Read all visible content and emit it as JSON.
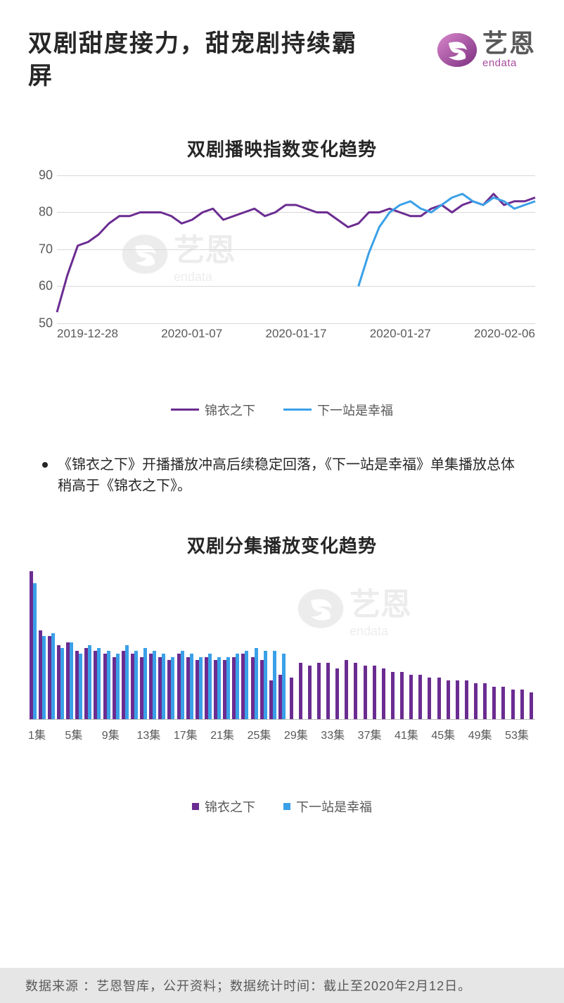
{
  "title": "双剧甜度接力，甜宠剧持续霸屏",
  "logo": {
    "cn": "艺恩",
    "en": "endata"
  },
  "colors": {
    "series1": "#6b2c91",
    "series2": "#3aa0e8",
    "text": "#262626",
    "subtext": "#595959",
    "grid": "#d9d9d9",
    "footer_bg": "#e6e6e6"
  },
  "line_chart": {
    "title": "双剧播映指数变化趋势",
    "ylim": [
      50,
      90
    ],
    "yticks": [
      50,
      60,
      70,
      80,
      90
    ],
    "xticks": [
      "2019-12-28",
      "2020-01-07",
      "2020-01-17",
      "2020-01-27",
      "2020-02-06"
    ],
    "series": [
      {
        "name": "锦衣之下",
        "color": "#6b2c91",
        "line_width": 3,
        "data": [
          53,
          63,
          71,
          72,
          74,
          77,
          79,
          79,
          80,
          80,
          80,
          79,
          77,
          78,
          80,
          81,
          78,
          79,
          80,
          81,
          79,
          80,
          82,
          82,
          81,
          80,
          80,
          78,
          76,
          77,
          80,
          80,
          81,
          80,
          79,
          79,
          81,
          82,
          80,
          82,
          83,
          82,
          85,
          82,
          83,
          83,
          84
        ]
      },
      {
        "name": "下一站是幸福",
        "color": "#3aa0e8",
        "line_width": 3,
        "start_index": 29,
        "data": [
          60,
          69,
          76,
          80,
          82,
          83,
          81,
          80,
          82,
          84,
          85,
          83,
          82,
          84,
          83,
          81,
          82,
          83
        ]
      }
    ],
    "legend": [
      "锦衣之下",
      "下一站是幸福"
    ]
  },
  "bullet_note": "《锦衣之下》开播播放冲高后续稳定回落，《下一站是幸福》单集播放总体稍高于《锦衣之下》。",
  "bar_chart": {
    "title": "双剧分集播放变化趋势",
    "max_value": 100,
    "xticks": [
      "1集",
      "5集",
      "9集",
      "13集",
      "17集",
      "21集",
      "25集",
      "29集",
      "33集",
      "37集",
      "41集",
      "45集",
      "49集",
      "53集"
    ],
    "xtick_positions": [
      1,
      5,
      9,
      13,
      17,
      21,
      25,
      29,
      33,
      37,
      41,
      45,
      49,
      53
    ],
    "num_episodes": 55,
    "series1": {
      "name": "锦衣之下",
      "color": "#6b2c91",
      "data": [
        100,
        60,
        56,
        50,
        52,
        46,
        48,
        46,
        44,
        42,
        46,
        44,
        42,
        44,
        42,
        40,
        44,
        42,
        40,
        42,
        40,
        40,
        42,
        44,
        42,
        40,
        26,
        30,
        28,
        38,
        36,
        38,
        38,
        34,
        40,
        38,
        36,
        36,
        34,
        32,
        32,
        30,
        30,
        28,
        28,
        26,
        26,
        26,
        24,
        24,
        22,
        22,
        20,
        20,
        18
      ]
    },
    "series2": {
      "name": "下一站是幸福",
      "color": "#3aa0e8",
      "data": [
        92,
        56,
        58,
        48,
        52,
        44,
        50,
        48,
        46,
        44,
        50,
        46,
        48,
        46,
        44,
        42,
        46,
        44,
        42,
        44,
        42,
        42,
        44,
        46,
        48,
        46,
        46,
        44
      ]
    },
    "legend": [
      "锦衣之下",
      "下一站是幸福"
    ]
  },
  "footer": "数据来源 ：艺恩智库，公开资料；数据统计时间：截止至2020年2月12日。"
}
